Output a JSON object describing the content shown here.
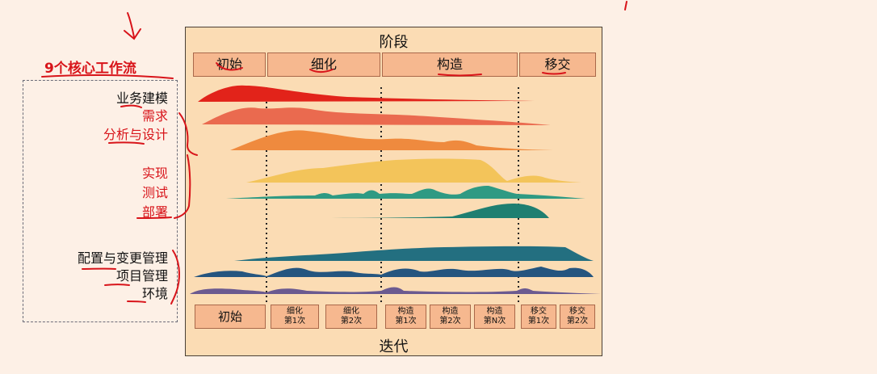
{
  "left_panel": {
    "core_title": "9个核心工作流",
    "workflows": [
      "业务建模",
      "需求",
      "分析与设计",
      "实现",
      "测试",
      "部署",
      "配置与变更管理",
      "项目管理",
      "环境"
    ]
  },
  "diagram": {
    "phase_title": "阶段",
    "phases": [
      "初始",
      "细化",
      "构造",
      "移交"
    ],
    "iteration_title": "迭代",
    "iterations": [
      {
        "line1": "初始",
        "line2": ""
      },
      {
        "line1": "细化",
        "line2": "第1次"
      },
      {
        "line1": "细化",
        "line2": "第2次"
      },
      {
        "line1": "构造",
        "line2": "第1次"
      },
      {
        "line1": "构造",
        "line2": "第2次"
      },
      {
        "line1": "构造",
        "line2": "第N次"
      },
      {
        "line1": "移交",
        "line2": "第1次"
      },
      {
        "line1": "移交",
        "line2": "第2次"
      }
    ]
  },
  "colors": {
    "annotation_red": "#d8141a",
    "panel_background": "#fbdcb4",
    "phase_box": "#f6b88f",
    "workflow_colors": [
      "#e2231a",
      "#ea6a4f",
      "#ef8a3e",
      "#f3c45a",
      "#2f9a83",
      "#1f7f71",
      "#236f80",
      "#25557f",
      "#6b5a90"
    ]
  }
}
